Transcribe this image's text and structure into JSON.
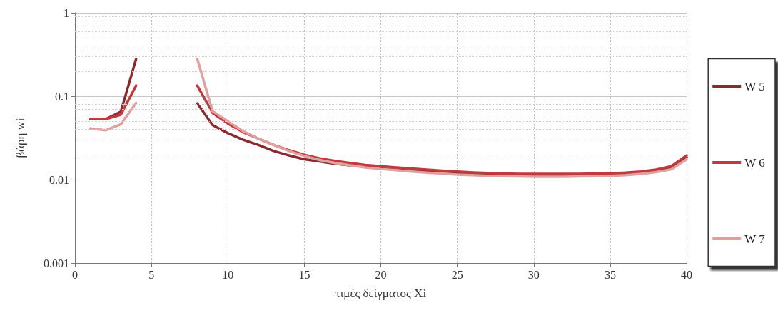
{
  "chart_data": {
    "type": "line",
    "xlabel": "τιμές δείγματος Xi",
    "ylabel": "βάρη wi",
    "log": "y",
    "grid": true,
    "legend": "right",
    "line_style": "solid",
    "marker": "none",
    "x": [
      1,
      2,
      3,
      4,
      5,
      6,
      7,
      8,
      9,
      10,
      11,
      12,
      13,
      14,
      15,
      16,
      17,
      18,
      19,
      20,
      21,
      22,
      23,
      24,
      25,
      26,
      27,
      28,
      29,
      30,
      31,
      32,
      33,
      34,
      35,
      36,
      37,
      38,
      39,
      40
    ],
    "xlim": [
      0,
      40
    ],
    "xticks": [
      0,
      5,
      10,
      15,
      20,
      25,
      30,
      35,
      40
    ],
    "ylim": [
      0.001,
      1
    ],
    "yticks": [
      0.001,
      0.01,
      0.1,
      1
    ],
    "series": [
      {
        "name": "W 5",
        "color": "#8b2a2e",
        "values": [
          0.053,
          0.053,
          0.065,
          0.28,
          null,
          null,
          null,
          0.082,
          0.045,
          0.036,
          0.03,
          0.026,
          0.022,
          0.0195,
          0.0175,
          0.0165,
          0.0155,
          0.0148,
          0.0142,
          0.0136,
          0.0132,
          0.0128,
          0.0125,
          0.0122,
          0.012,
          0.0118,
          0.0116,
          0.0115,
          0.0114,
          0.0113,
          0.0113,
          0.0113,
          0.0113,
          0.0114,
          0.0115,
          0.0117,
          0.012,
          0.0126,
          0.0138,
          0.0185
        ]
      },
      {
        "name": "W 6",
        "color": "#c0393b",
        "values": [
          0.053,
          0.053,
          0.06,
          0.134,
          null,
          null,
          null,
          0.134,
          0.063,
          0.047,
          0.037,
          0.031,
          0.026,
          0.0225,
          0.0198,
          0.018,
          0.0168,
          0.0158,
          0.015,
          0.0145,
          0.014,
          0.0136,
          0.0132,
          0.0128,
          0.0125,
          0.0122,
          0.012,
          0.0118,
          0.0117,
          0.0117,
          0.0117,
          0.0117,
          0.0117,
          0.0118,
          0.0119,
          0.0121,
          0.0125,
          0.0132,
          0.0145,
          0.0195
        ]
      },
      {
        "name": "W 7",
        "color": "#e0a0a0",
        "values": [
          0.041,
          0.039,
          0.046,
          0.083,
          null,
          null,
          null,
          0.28,
          0.066,
          0.05,
          0.038,
          0.031,
          0.026,
          0.022,
          0.0192,
          0.0172,
          0.0158,
          0.0148,
          0.014,
          0.0134,
          0.013,
          0.0125,
          0.0121,
          0.0118,
          0.0115,
          0.0113,
          0.0111,
          0.011,
          0.0109,
          0.0108,
          0.0108,
          0.0108,
          0.0109,
          0.011,
          0.0111,
          0.0113,
          0.0117,
          0.0123,
          0.0133,
          0.0175
        ]
      }
    ]
  }
}
